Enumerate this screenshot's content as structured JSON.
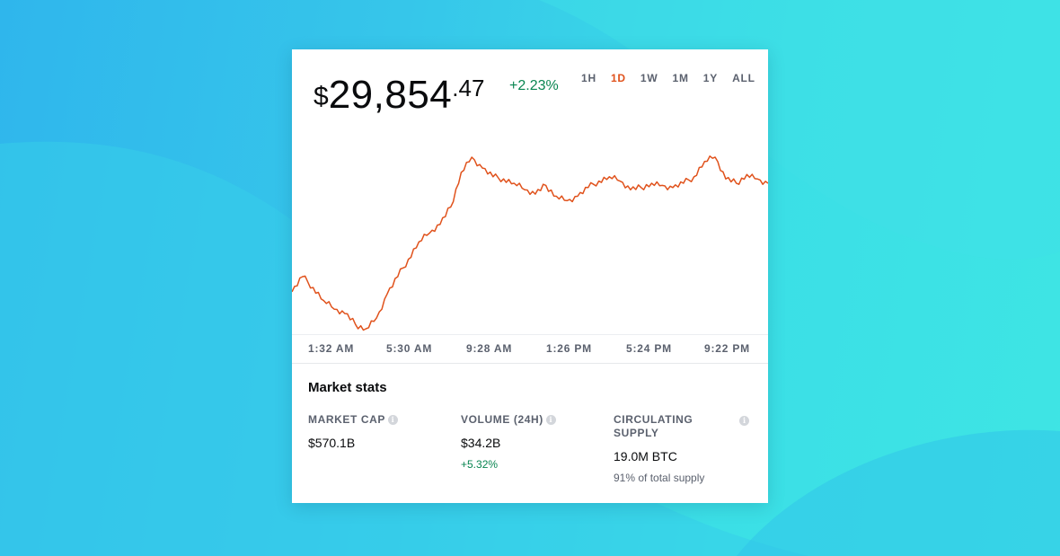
{
  "price": {
    "currency_symbol": "$",
    "main": "29,854",
    "cents": ".47"
  },
  "change": "+2.23%",
  "colors": {
    "accent": "#e0521c",
    "positive": "#098551",
    "text": "#0a0b0d",
    "muted": "#5b616e"
  },
  "ranges": [
    {
      "label": "1H",
      "active": false
    },
    {
      "label": "1D",
      "active": true
    },
    {
      "label": "1W",
      "active": false
    },
    {
      "label": "1M",
      "active": false
    },
    {
      "label": "1Y",
      "active": false
    },
    {
      "label": "ALL",
      "active": false
    }
  ],
  "chart_data": {
    "type": "line",
    "x_tick_labels": [
      "1:32 AM",
      "5:30 AM",
      "9:28 AM",
      "1:26 PM",
      "5:24 PM",
      "9:22 PM"
    ],
    "series": [
      {
        "values": [
          29330,
          29400,
          29350,
          29290,
          29250,
          29230,
          29180,
          29160,
          29210,
          29320,
          29400,
          29480,
          29560,
          29600,
          29640,
          29720,
          29880,
          29950,
          29900,
          29860,
          29850,
          29830,
          29800,
          29780,
          29820,
          29770,
          29750,
          29770,
          29810,
          29840,
          29860,
          29840,
          29800,
          29810,
          29830,
          29820,
          29810,
          29830,
          29860,
          29930,
          29950,
          29850,
          29830,
          29870,
          29850,
          29830
        ]
      }
    ],
    "grid": false,
    "legend": "none"
  },
  "stats": {
    "title": "Market stats",
    "items": [
      {
        "label": "MARKET CAP",
        "value": "$570.1B",
        "sub": ""
      },
      {
        "label": "VOLUME (24H)",
        "value": "$34.2B",
        "sub": "+5.32%"
      },
      {
        "label": "CIRCULATING SUPPLY",
        "value": "19.0M BTC",
        "sub": "91% of total supply"
      }
    ]
  }
}
